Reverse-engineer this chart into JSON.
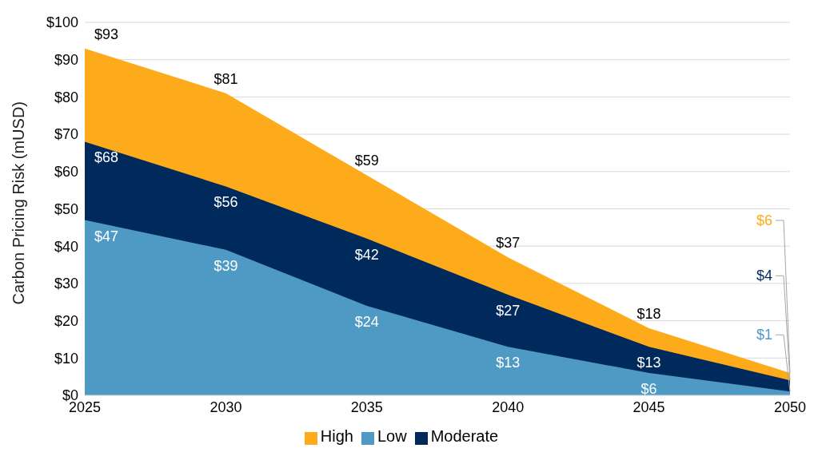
{
  "chart_data": {
    "type": "area",
    "ylabel": "Carbon Pricing Risk (mUSD)",
    "x": [
      2025,
      2030,
      2035,
      2040,
      2045,
      2050
    ],
    "xlim": [
      2025,
      2050
    ],
    "xticks": [
      2025,
      2030,
      2035,
      2040,
      2045,
      2050
    ],
    "ylim": [
      0,
      100
    ],
    "yticks": [
      {
        "value": 0,
        "label": "$0"
      },
      {
        "value": 10,
        "label": "$10"
      },
      {
        "value": 20,
        "label": "$20"
      },
      {
        "value": 30,
        "label": "$30"
      },
      {
        "value": 40,
        "label": "$40"
      },
      {
        "value": 50,
        "label": "$50"
      },
      {
        "value": 60,
        "label": "$60"
      },
      {
        "value": 70,
        "label": "$70"
      },
      {
        "value": 80,
        "label": "$80"
      },
      {
        "value": 90,
        "label": "$90"
      },
      {
        "value": 100,
        "label": "$100"
      }
    ],
    "grid": "y",
    "legend": "bottom",
    "series": [
      {
        "name": "High",
        "color": "#fdab1a",
        "values": [
          93,
          81,
          59,
          37,
          18,
          6
        ],
        "value_labels": [
          "$93",
          "$81",
          "$59",
          "$37",
          "$18",
          "$6"
        ]
      },
      {
        "name": "Moderate",
        "color": "#002a5c",
        "values": [
          68,
          56,
          42,
          27,
          13,
          4
        ],
        "value_labels": [
          "$68",
          "$56",
          "$42",
          "$27",
          "$13",
          "$4"
        ]
      },
      {
        "name": "Low",
        "color": "#4f9ac4",
        "values": [
          47,
          39,
          24,
          13,
          6,
          1
        ],
        "value_labels": [
          "$47",
          "$39",
          "$24",
          "$13",
          "$6",
          "$1"
        ]
      }
    ]
  }
}
